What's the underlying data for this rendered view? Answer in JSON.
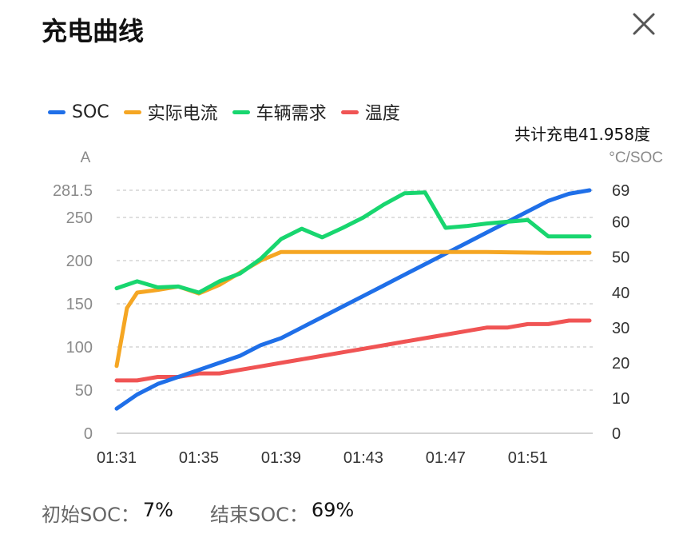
{
  "header": {
    "title": "充电曲线"
  },
  "summary": {
    "total_energy": "共计充电41.958度",
    "start_soc_label": "初始SOC：",
    "start_soc_value": "7%",
    "end_soc_label": "结束SOC：",
    "end_soc_value": "69%"
  },
  "colors": {
    "soc": "#1f6fe8",
    "current": "#f5a623",
    "demand": "#18d66f",
    "temperature": "#f05454",
    "grid": "#cccccc",
    "axis_text": "#8a8a8a"
  },
  "chart_data": {
    "type": "line",
    "left_axis": {
      "unit_label": "A",
      "ticks": [
        "0",
        "50",
        "100",
        "150",
        "200",
        "250",
        "281.5"
      ],
      "range": [
        0,
        281.5
      ]
    },
    "right_axis": {
      "unit_label": "°C/SOC",
      "ticks": [
        "0",
        "10",
        "20",
        "30",
        "40",
        "50",
        "60",
        "69"
      ],
      "range": [
        0,
        69
      ]
    },
    "x_ticks": [
      "01:31",
      "01:35",
      "01:39",
      "01:43",
      "01:47",
      "01:51"
    ],
    "x_range": [
      0,
      23
    ],
    "grid": true,
    "legend_position": "top-left",
    "series": [
      {
        "key": "soc",
        "name": "SOC",
        "axis": "right",
        "x": [
          0,
          1,
          2,
          3,
          4,
          5,
          6,
          7,
          8,
          9,
          10,
          11,
          12,
          13,
          14,
          15,
          16,
          17,
          18,
          19,
          20,
          21,
          22,
          23
        ],
        "y": [
          7,
          11,
          14,
          16,
          18,
          20,
          22,
          25,
          27,
          30,
          33,
          36,
          39,
          42,
          45,
          48,
          51,
          54,
          57,
          60,
          63,
          66,
          68,
          69
        ]
      },
      {
        "key": "current",
        "name": "实际电流",
        "axis": "left",
        "x": [
          0,
          0.5,
          1,
          2,
          3,
          4,
          5,
          6,
          7,
          8,
          9,
          10,
          12,
          15,
          18,
          21,
          23
        ],
        "y": [
          78,
          145,
          163,
          166,
          170,
          162,
          172,
          186,
          200,
          210,
          210,
          210,
          210,
          210,
          210,
          209,
          209
        ]
      },
      {
        "key": "demand",
        "name": "车辆需求",
        "axis": "left",
        "x": [
          0,
          1,
          2,
          3,
          4,
          5,
          6,
          7,
          8,
          9,
          10,
          11,
          12,
          13,
          14,
          15,
          16,
          17,
          18,
          19,
          20,
          21,
          22,
          23
        ],
        "y": [
          168,
          176,
          169,
          170,
          163,
          176,
          185,
          202,
          225,
          237,
          227,
          238,
          250,
          265,
          278,
          279,
          238,
          240,
          243,
          245,
          247,
          228,
          228,
          228
        ]
      },
      {
        "key": "temperature",
        "name": "温度",
        "axis": "right",
        "x": [
          0,
          1,
          2,
          3,
          4,
          5,
          6,
          7,
          8,
          9,
          10,
          11,
          12,
          13,
          14,
          15,
          16,
          17,
          18,
          19,
          20,
          21,
          22,
          23
        ],
        "y": [
          15,
          15,
          16,
          16,
          17,
          17,
          18,
          19,
          20,
          21,
          22,
          23,
          24,
          25,
          26,
          27,
          28,
          29,
          30,
          30,
          31,
          31,
          32,
          32
        ]
      }
    ]
  }
}
